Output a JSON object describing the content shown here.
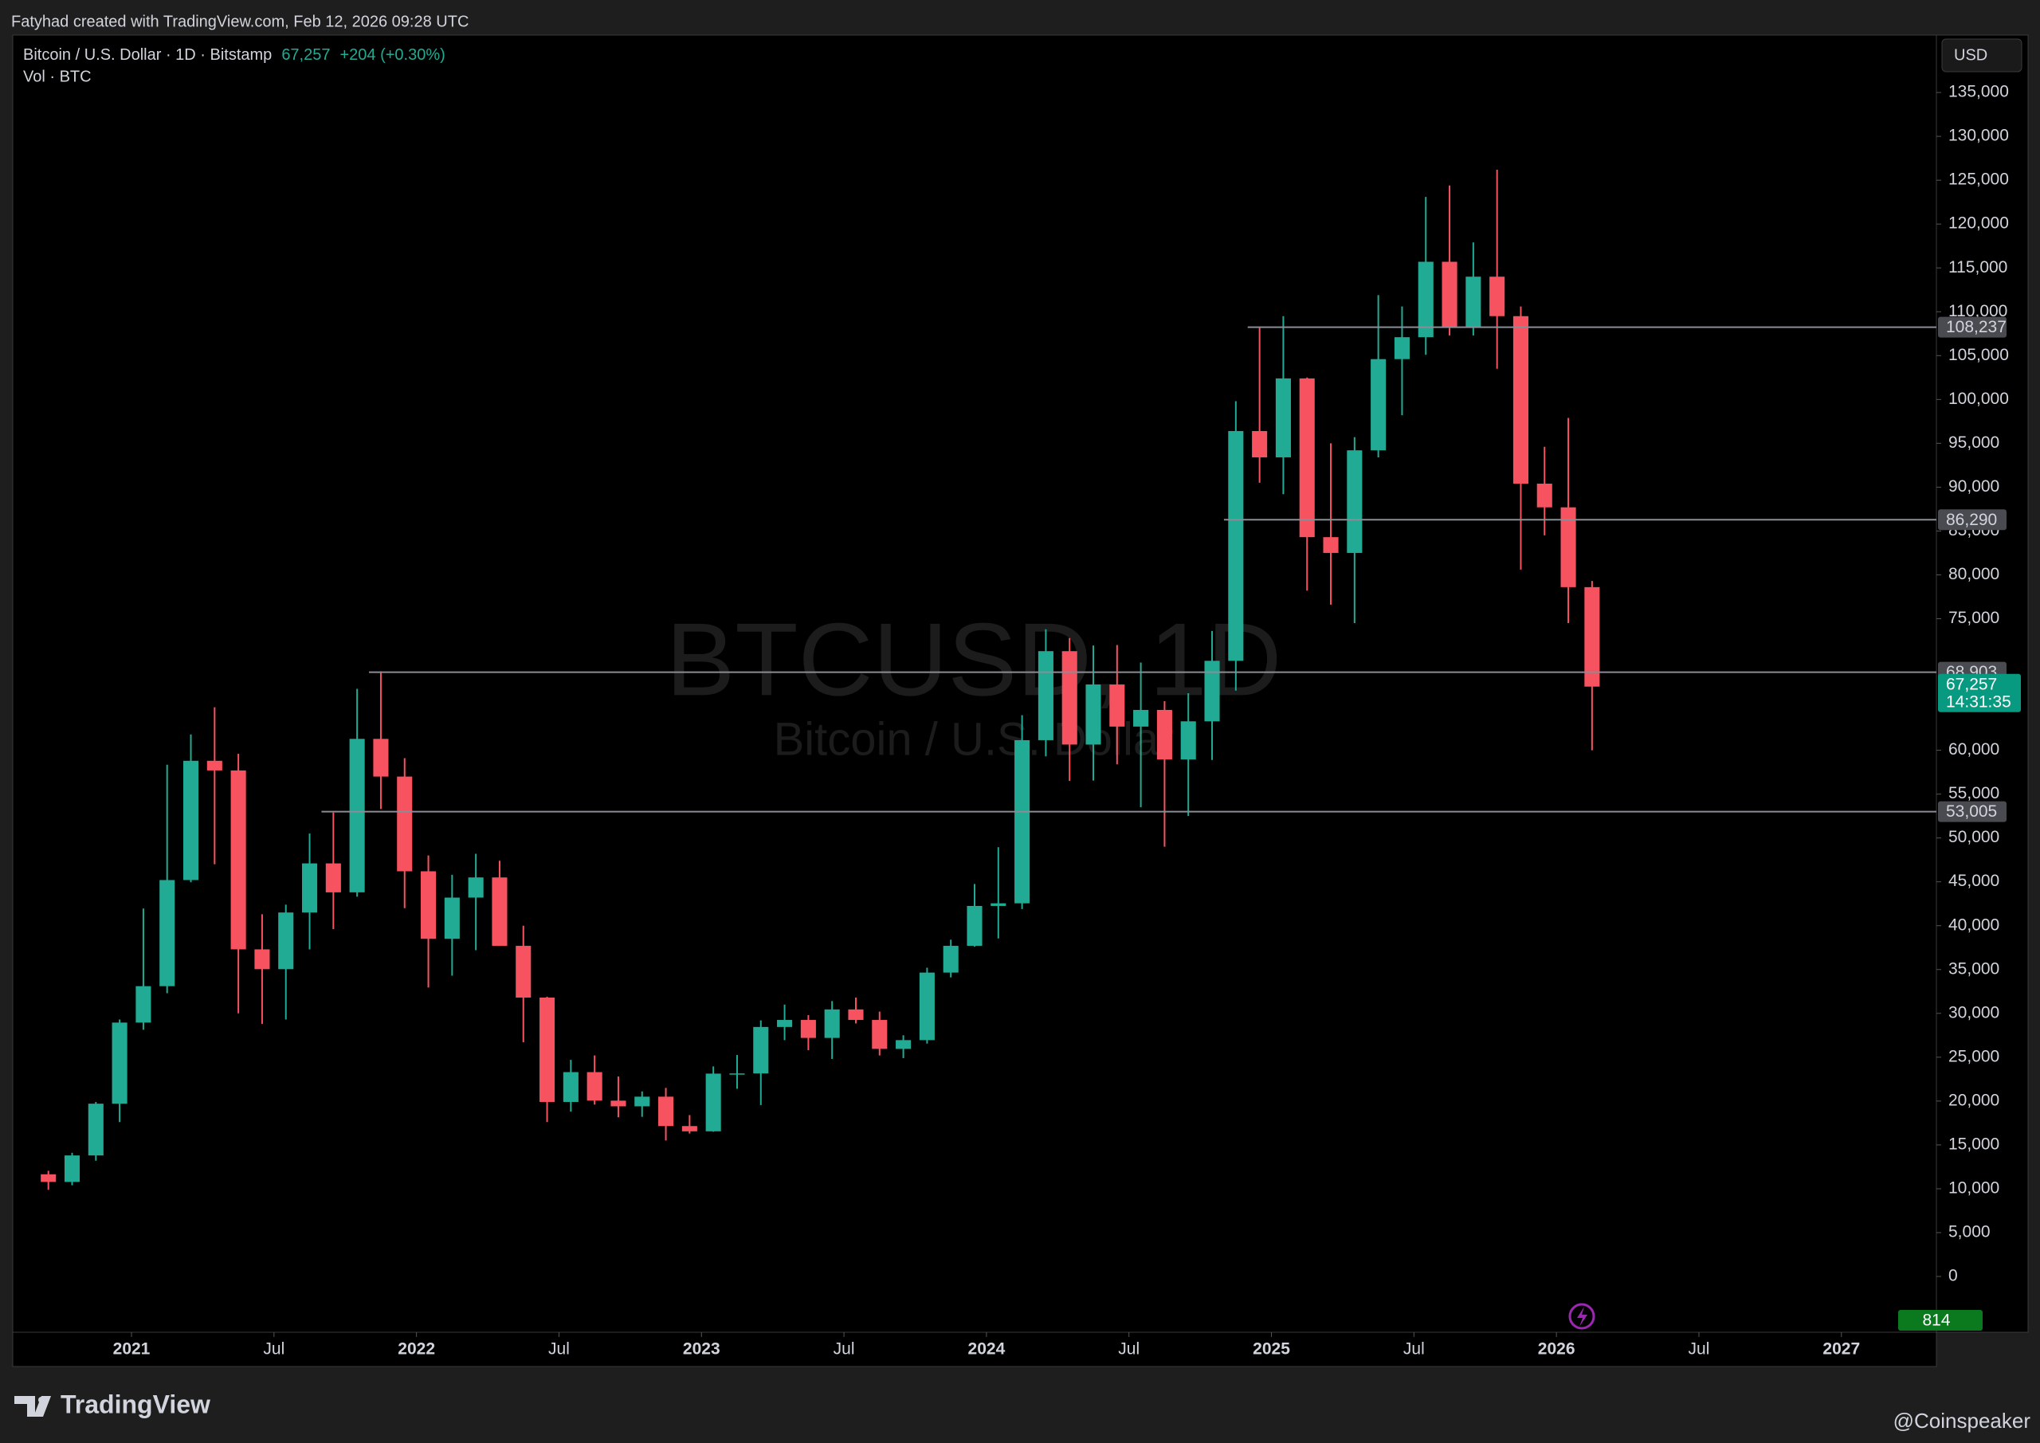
{
  "header": {
    "credit": "Fatyhad created with TradingView.com, Feb 12, 2026 09:28 UTC"
  },
  "legend": {
    "symbol": "Bitcoin / U.S. Dollar · 1D · Bitstamp",
    "change": "+204 (+0.30%)",
    "volume": "Vol · BTC"
  },
  "currency": "USD",
  "footer": {
    "brand": "TradingView",
    "source": "@Coinspeaker"
  },
  "chart_data": {
    "type": "candlestick",
    "watermark": "BTCUSD, 1D",
    "watermark_sub": "Bitcoin / U.S. Dollar",
    "up_color": "#22ab94",
    "down_color": "#f7525f",
    "x": [
      "2020-09",
      "2020-10",
      "2020-11",
      "2020-12",
      "2021-01",
      "2021-02",
      "2021-03",
      "2021-04",
      "2021-05",
      "2021-06",
      "2021-07",
      "2021-08",
      "2021-09",
      "2021-10",
      "2021-11",
      "2021-12",
      "2022-01",
      "2022-02",
      "2022-03",
      "2022-04",
      "2022-05",
      "2022-06",
      "2022-07",
      "2022-08",
      "2022-09",
      "2022-10",
      "2022-11",
      "2022-12",
      "2023-01",
      "2023-02",
      "2023-03",
      "2023-04",
      "2023-05",
      "2023-06",
      "2023-07",
      "2023-08",
      "2023-09",
      "2023-10",
      "2023-11",
      "2023-12",
      "2024-01",
      "2024-02",
      "2024-03",
      "2024-04",
      "2024-05",
      "2024-06",
      "2024-07",
      "2024-08",
      "2024-09",
      "2024-10",
      "2024-11",
      "2024-12",
      "2025-01",
      "2025-02",
      "2025-03",
      "2025-04",
      "2025-05",
      "2025-06",
      "2025-07",
      "2025-08",
      "2025-09",
      "2025-10",
      "2025-11",
      "2025-12",
      "2026-01",
      "2026-02"
    ],
    "open": [
      11650,
      10780,
      13800,
      19700,
      28950,
      33100,
      45200,
      58800,
      57700,
      37300,
      35040,
      41500,
      47100,
      43800,
      61300,
      57000,
      46200,
      38500,
      43200,
      45500,
      37700,
      31800,
      19900,
      23300,
      20050,
      19400,
      20500,
      17150,
      16550,
      23130,
      23150,
      28450,
      29250,
      27200,
      30450,
      29250,
      25950,
      26950,
      34650,
      37700,
      42250,
      42550,
      61150,
      71300,
      60650,
      67500,
      62700,
      64600,
      58950,
      63300,
      70200,
      96400,
      93400,
      102400,
      84300,
      82500,
      94200,
      104600,
      107100,
      115700,
      108200,
      114000,
      109500,
      90400,
      87700,
      78600
    ],
    "high": [
      12050,
      14100,
      19900,
      29300,
      41950,
      58350,
      61800,
      64900,
      59600,
      41300,
      42400,
      50500,
      52900,
      67000,
      69000,
      59100,
      48000,
      45800,
      48200,
      47400,
      40000,
      31900,
      24700,
      25200,
      22800,
      21100,
      21500,
      18400,
      23950,
      25250,
      29200,
      31000,
      29800,
      31400,
      31800,
      30200,
      27500,
      35200,
      38400,
      44750,
      48950,
      64000,
      73800,
      72800,
      71950,
      72000,
      70000,
      65600,
      66500,
      73600,
      99800,
      108300,
      109500,
      102500,
      95000,
      95700,
      111900,
      110600,
      123100,
      124400,
      117900,
      126200,
      110600,
      94600,
      97900,
      79300
    ],
    "low": [
      9880,
      10400,
      13200,
      17600,
      28130,
      32300,
      44950,
      47000,
      30000,
      28800,
      29300,
      37300,
      39600,
      43300,
      53300,
      42000,
      32950,
      34300,
      37200,
      37700,
      26700,
      17600,
      18800,
      19600,
      18150,
      18200,
      15500,
      16300,
      16500,
      21400,
      19550,
      26950,
      25800,
      24800,
      28850,
      25200,
      24900,
      26550,
      34100,
      37600,
      38550,
      41900,
      59300,
      56500,
      56550,
      58400,
      53500,
      49000,
      52500,
      58900,
      66800,
      90500,
      89200,
      78200,
      76600,
      74500,
      93400,
      98200,
      105100,
      107300,
      107300,
      103500,
      80600,
      84500,
      74500,
      60000
    ],
    "close": [
      10780,
      13800,
      19700,
      28950,
      33100,
      45200,
      58800,
      57700,
      37300,
      35040,
      41500,
      47100,
      43800,
      61300,
      57000,
      46200,
      38500,
      43200,
      45500,
      37700,
      31800,
      19900,
      23300,
      20050,
      19400,
      20500,
      17150,
      16550,
      23130,
      23150,
      28450,
      29250,
      27200,
      30450,
      29250,
      25950,
      26950,
      34650,
      37700,
      42250,
      42550,
      61150,
      71300,
      60650,
      67500,
      62700,
      64600,
      58950,
      63300,
      70200,
      96400,
      93400,
      102400,
      84300,
      82500,
      94200,
      104600,
      107100,
      115700,
      108200,
      114000,
      109500,
      90400,
      87700,
      78600,
      67257
    ],
    "last": {
      "value": 67257,
      "label": "67,257"
    },
    "countdown": "14:31:35",
    "volume_last": 814,
    "xlim": [
      "2020-08",
      "2027-05"
    ],
    "xticks": [
      {
        "value": "2021-01",
        "label": "2021"
      },
      {
        "value": "2021-07",
        "label": "Jul"
      },
      {
        "value": "2022-01",
        "label": "2022"
      },
      {
        "value": "2022-07",
        "label": "Jul"
      },
      {
        "value": "2023-01",
        "label": "2023"
      },
      {
        "value": "2023-07",
        "label": "Jul"
      },
      {
        "value": "2024-01",
        "label": "2024"
      },
      {
        "value": "2024-07",
        "label": "Jul"
      },
      {
        "value": "2025-01",
        "label": "2025"
      },
      {
        "value": "2025-07",
        "label": "Jul"
      },
      {
        "value": "2026-01",
        "label": "2026"
      },
      {
        "value": "2026-07",
        "label": "Jul"
      },
      {
        "value": "2027-01",
        "label": "2027"
      }
    ],
    "ylim": [
      -6360,
      141550
    ],
    "yticks": [
      {
        "value": 135000,
        "label": "135,000"
      },
      {
        "value": 130000,
        "label": "130,000"
      },
      {
        "value": 125000,
        "label": "125,000"
      },
      {
        "value": 120000,
        "label": "120,000"
      },
      {
        "value": 115000,
        "label": "115,000"
      },
      {
        "value": 110000,
        "label": "110,000"
      },
      {
        "value": 105000,
        "label": "105,000"
      },
      {
        "value": 100000,
        "label": "100,000"
      },
      {
        "value": 95000,
        "label": "95,000"
      },
      {
        "value": 90000,
        "label": "90,000"
      },
      {
        "value": 85000,
        "label": "85,000"
      },
      {
        "value": 80000,
        "label": "80,000"
      },
      {
        "value": 75000,
        "label": "75,000"
      },
      {
        "value": 60000,
        "label": "60,000"
      },
      {
        "value": 55000,
        "label": "55,000"
      },
      {
        "value": 50000,
        "label": "50,000"
      },
      {
        "value": 45000,
        "label": "45,000"
      },
      {
        "value": 40000,
        "label": "40,000"
      },
      {
        "value": 35000,
        "label": "35,000"
      },
      {
        "value": 30000,
        "label": "30,000"
      },
      {
        "value": 25000,
        "label": "25,000"
      },
      {
        "value": 20000,
        "label": "20,000"
      },
      {
        "value": 15000,
        "label": "15,000"
      },
      {
        "value": 10000,
        "label": "10,000"
      },
      {
        "value": 5000,
        "label": "5,000"
      },
      0
    ],
    "levels": [
      {
        "value": 108237,
        "label": "108,237",
        "from": "2024-12"
      },
      {
        "value": 86290,
        "label": "86,290",
        "from": "2024-11"
      },
      {
        "value": 68903,
        "label": "68,903",
        "from": "2021-11"
      },
      {
        "value": 53005,
        "label": "53,005",
        "from": "2021-09"
      }
    ]
  }
}
